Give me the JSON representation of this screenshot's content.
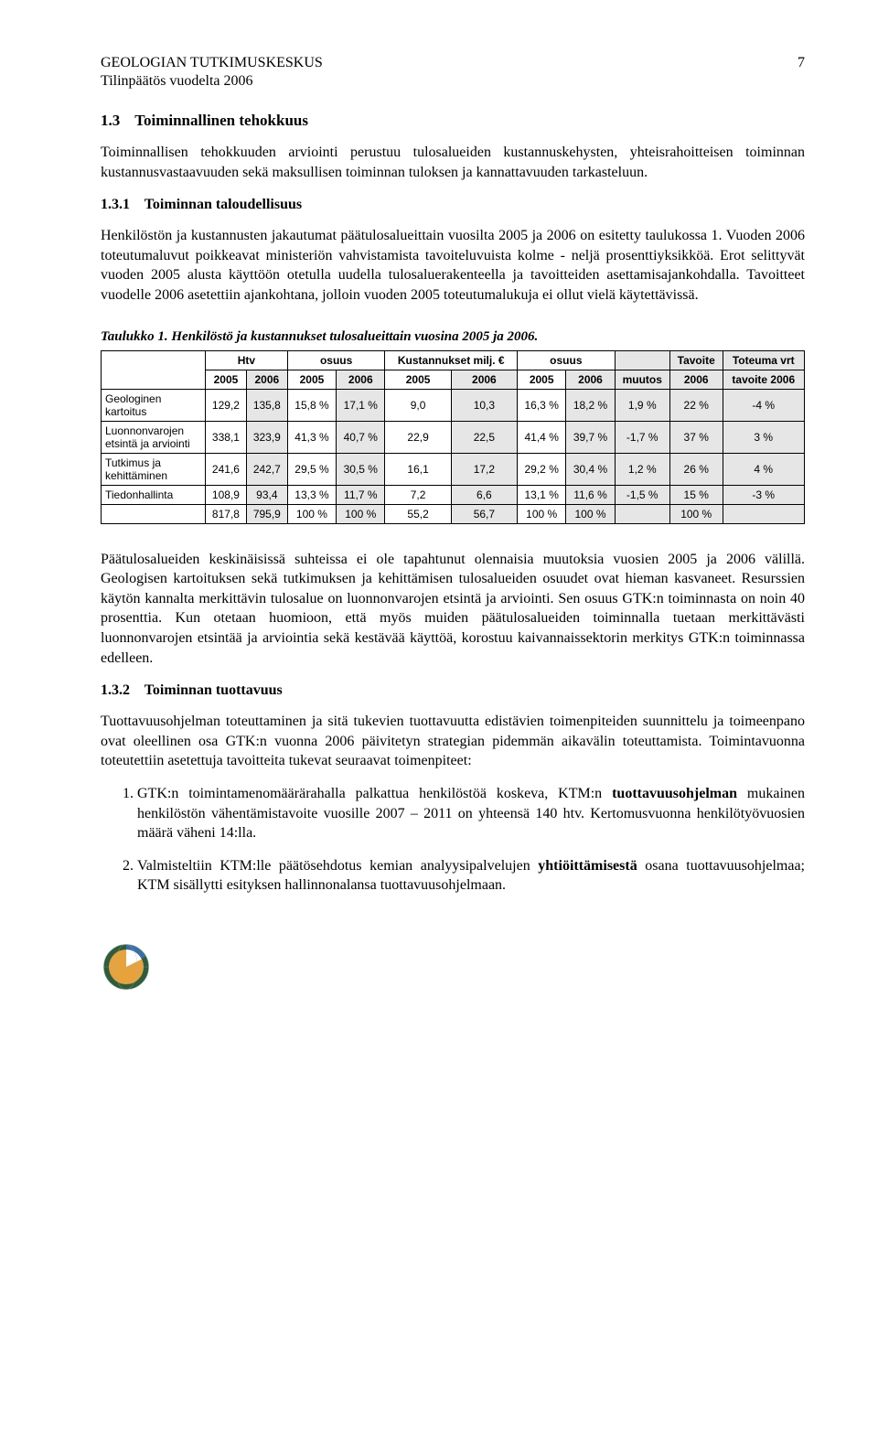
{
  "header": {
    "title": "GEOLOGIAN TUTKIMUSKESKUS",
    "subtitle": "Tilinpäätös vuodelta 2006",
    "page_number": "7"
  },
  "section_1_3": {
    "num": "1.3",
    "title": "Toiminnallinen tehokkuus",
    "p1": "Toiminnallisen tehokkuuden arviointi perustuu tulosalueiden kustannuskehysten, yhteisrahoitteisen toiminnan kustannusvastaavuuden sekä maksullisen toiminnan tuloksen ja kannattavuuden tarkasteluun."
  },
  "section_1_3_1": {
    "num": "1.3.1",
    "title": "Toiminnan taloudellisuus",
    "p1": "Henkilöstön ja kustannusten jakautumat päätulosalueittain vuosilta 2005 ja 2006 on esitetty taulukossa 1. Vuoden 2006 toteutumaluvut poikkeavat ministeriön vahvistamista tavoiteluvuista kolme - neljä prosenttiyksikköä. Erot selittyvät vuoden 2005 alusta käyttöön otetulla uudella tulosaluerakenteella ja tavoitteiden asettamisajankohdalla. Tavoitteet vuodelle 2006 asetettiin ajankohtana, jolloin vuoden 2005 toteutumalukuja ei ollut vielä käytettävissä."
  },
  "table1": {
    "caption": "Taulukko 1.  Henkilöstö ja kustannukset tulosalueittain vuosina 2005 ja 2006.",
    "group_headers": [
      "",
      "Htv",
      "osuus",
      "Kustannukset milj. €",
      "osuus",
      "",
      "Tavoite",
      "Toteuma vrt"
    ],
    "year_headers": [
      "",
      "2005",
      "2006",
      "2005",
      "2006",
      "2005",
      "2006",
      "2005",
      "2006",
      "muutos",
      "2006",
      "tavoite 2006"
    ],
    "rows": [
      {
        "label": "Geologinen kartoitus",
        "cells": [
          "129,2",
          "135,8",
          "15,8 %",
          "17,1 %",
          "9,0",
          "10,3",
          "16,3 %",
          "18,2 %",
          "1,9 %",
          "22 %",
          "-4 %"
        ],
        "shade": [
          false,
          true,
          false,
          true,
          false,
          true,
          false,
          true,
          true,
          true,
          true
        ]
      },
      {
        "label": "Luonnonvarojen etsintä ja arviointi",
        "cells": [
          "338,1",
          "323,9",
          "41,3 %",
          "40,7 %",
          "22,9",
          "22,5",
          "41,4 %",
          "39,7 %",
          "-1,7 %",
          "37 %",
          "3 %"
        ],
        "shade": [
          false,
          true,
          false,
          true,
          false,
          true,
          false,
          true,
          true,
          true,
          true
        ]
      },
      {
        "label": "Tutkimus ja kehittäminen",
        "cells": [
          "241,6",
          "242,7",
          "29,5 %",
          "30,5 %",
          "16,1",
          "17,2",
          "29,2 %",
          "30,4 %",
          "1,2 %",
          "26 %",
          "4 %"
        ],
        "shade": [
          false,
          true,
          false,
          true,
          false,
          true,
          false,
          true,
          true,
          true,
          true
        ]
      },
      {
        "label": "Tiedonhallinta",
        "cells": [
          "108,9",
          "93,4",
          "13,3 %",
          "11,7 %",
          "7,2",
          "6,6",
          "13,1 %",
          "11,6 %",
          "-1,5 %",
          "15 %",
          "-3 %"
        ],
        "shade": [
          false,
          true,
          false,
          true,
          false,
          true,
          false,
          true,
          true,
          true,
          true
        ]
      },
      {
        "label": "",
        "cells": [
          "817,8",
          "795,9",
          "100 %",
          "100 %",
          "55,2",
          "56,7",
          "100 %",
          "100 %",
          "",
          "100 %",
          ""
        ],
        "shade": [
          false,
          true,
          false,
          true,
          false,
          true,
          false,
          true,
          true,
          true,
          true
        ]
      }
    ],
    "header_shade": {
      "htv_2006": true,
      "osuus1_2006": true,
      "kust_2006": true,
      "osuus2_2006": true,
      "muutos": true,
      "tavoite": true,
      "toteuma": true
    }
  },
  "post_table": {
    "p1": "Päätulosalueiden keskinäisissä suhteissa ei ole tapahtunut olennaisia muutoksia vuosien 2005 ja 2006 välillä. Geologisen kartoituksen sekä tutkimuksen ja kehittämisen tulosalueiden osuudet ovat hieman kasvaneet. Resurssien käytön kannalta merkittävin tulosalue on luonnonvarojen etsintä ja arviointi. Sen osuus GTK:n toiminnasta on noin 40 prosenttia. Kun otetaan huomioon, että myös muiden päätulosalueiden toiminnalla tuetaan merkittävästi luonnonvarojen etsintää ja arviointia sekä kestävää käyttöä, korostuu kaivannaissektorin merkitys GTK:n toiminnassa edelleen."
  },
  "section_1_3_2": {
    "num": "1.3.2",
    "title": "Toiminnan tuottavuus",
    "p1": "Tuottavuusohjelman toteuttaminen ja sitä tukevien tuottavuutta edistävien toimenpiteiden suunnittelu ja toimeenpano ovat oleellinen osa GTK:n vuonna 2006 päivitetyn strategian pidemmän aikavälin toteuttamista. Toimintavuonna toteutettiin asetettuja tavoitteita tukevat seuraavat toimenpiteet:",
    "list": [
      {
        "pre": "GTK:n toimintamenomäärärahalla palkattua henkilöstöä koskeva, KTM:n ",
        "bold": "tuottavuusohjelman",
        "post": " mukainen henkilöstön vähentämistavoite vuosille 2007 – 2011 on yhteensä 140 htv. Kertomusvuonna henkilötyövuosien määrä väheni 14:lla."
      },
      {
        "pre": "Valmisteltiin KTM:lle päätösehdotus kemian analyysipalvelujen ",
        "bold": "yhtiöittämisestä",
        "post": " osana tuottavuusohjelmaa; KTM sisällytti esityksen hallinnon­alansa tuottavuusohjelmaan."
      }
    ]
  },
  "logo": {
    "colors": {
      "outer": "#2d5c3f",
      "inner": "#e8a23c",
      "slice": "#3b6fa8",
      "bg": "#ffffff"
    }
  }
}
